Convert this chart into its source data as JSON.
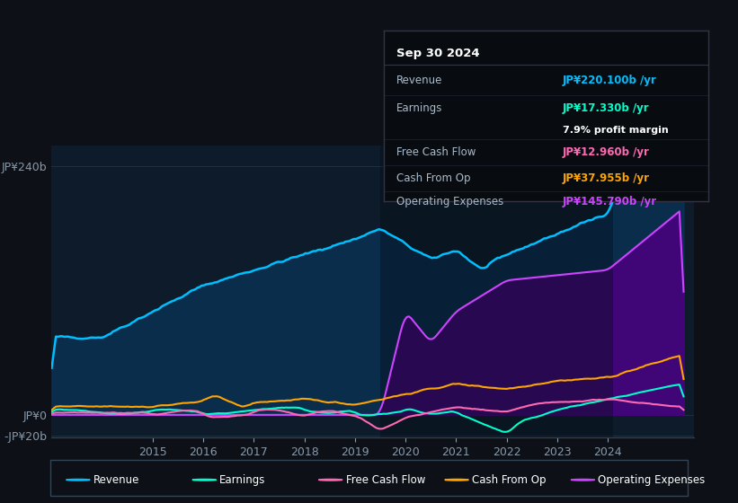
{
  "bg_color": "#0d1117",
  "plot_bg_color": "#0d1b2a",
  "grid_color": "#1e3040",
  "ylim": [
    -22,
    260
  ],
  "yticks": [
    -20,
    0,
    240
  ],
  "ytick_labels": [
    "-JP¥20b",
    "JP¥0",
    "JP¥240b"
  ],
  "xtick_positions": [
    2015,
    2016,
    2017,
    2018,
    2019,
    2020,
    2021,
    2022,
    2023,
    2024
  ],
  "colors": {
    "revenue": "#00bfff",
    "earnings": "#00ffcc",
    "free_cash_flow": "#ff69b4",
    "cash_from_op": "#ffa500",
    "operating_expenses": "#cc44ff"
  },
  "fill_colors": {
    "revenue": "#0a3050",
    "operating_expenses": "#4a0080"
  },
  "legend_items": [
    "Revenue",
    "Earnings",
    "Free Cash Flow",
    "Cash From Op",
    "Operating Expenses"
  ],
  "tooltip": {
    "date": "Sep 30 2024",
    "revenue_label": "Revenue",
    "revenue_val": "JP¥220.100b /yr",
    "earnings_label": "Earnings",
    "earnings_val": "JP¥17.330b /yr",
    "profit_margin": "7.9%",
    "profit_margin_text": "profit margin",
    "fcf_label": "Free Cash Flow",
    "fcf_val": "JP¥12.960b /yr",
    "cash_label": "Cash From Op",
    "cash_val": "JP¥37.955b /yr",
    "opex_label": "Operating Expenses",
    "opex_val": "JP¥145.790b /yr"
  },
  "tip_text_color": "#aabbcc",
  "vspan_start": 2019.5,
  "vspan_end": 2024.1,
  "xlim_start": 2013.0,
  "xlim_end": 2025.7
}
